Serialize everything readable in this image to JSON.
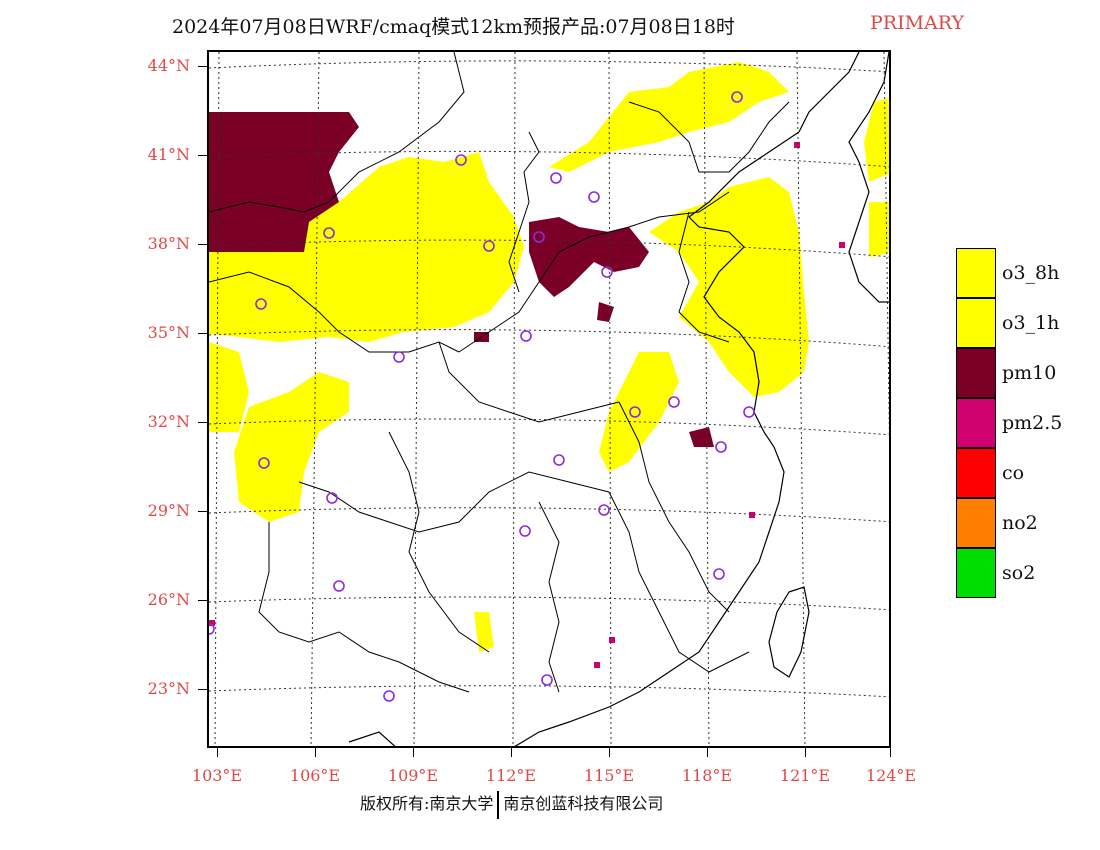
{
  "title": {
    "main": "2024年07月08日WRF/cmaq模式12km预报产品:07月08日18时",
    "tag": "PRIMARY"
  },
  "axes": {
    "latitudes": [
      "44°N",
      "41°N",
      "38°N",
      "35°N",
      "32°N",
      "29°N",
      "26°N",
      "23°N"
    ],
    "longitudes": [
      "103°E",
      "106°E",
      "109°E",
      "112°E",
      "115°E",
      "118°E",
      "121°E",
      "124°E"
    ]
  },
  "legend": [
    {
      "label": "o3_8h",
      "color": "#ffff00"
    },
    {
      "label": "o3_1h",
      "color": "#ffff00"
    },
    {
      "label": "pm10",
      "color": "#7a0028"
    },
    {
      "label": "pm2.5",
      "color": "#d0006e"
    },
    {
      "label": "co",
      "color": "#ff0000"
    },
    {
      "label": "no2",
      "color": "#ff8000"
    },
    {
      "label": "so2",
      "color": "#00dd00"
    }
  ],
  "footer": {
    "left": "版权所有:南京大学",
    "right": "南京创蓝科技有限公司"
  }
}
